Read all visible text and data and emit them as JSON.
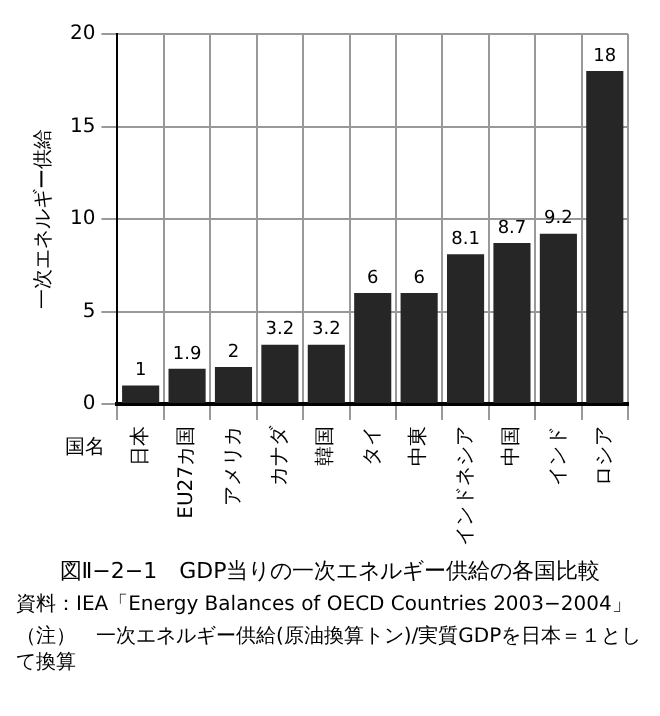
{
  "chart_data": {
    "type": "bar",
    "title": "図Ⅱ−2−1　GDP当りの一次エネルギー供給の各国比較",
    "xlabel": "国名",
    "ylabel": "一次エネルギー供給",
    "categories": [
      "日本",
      "EU27カ国",
      "アメリカ",
      "カナダ",
      "韓国",
      "タイ",
      "中東",
      "インドネシア",
      "中国",
      "インド",
      "ロシア"
    ],
    "values": [
      1,
      1.9,
      2,
      3.2,
      3.2,
      6,
      6,
      8.1,
      8.7,
      9.2,
      18
    ],
    "color": "#262626",
    "ylim": [
      0,
      20
    ],
    "yticks": [
      0,
      5,
      10,
      15,
      20
    ],
    "grid": true,
    "legend": false,
    "data_labels": true,
    "annotations": [
      "資料：IEA「Energy Balances of OECD Countries 2003−2004」",
      "（注）　一次エネルギー供給(原油換算トン)/実質GDPを日本＝１として換算"
    ]
  }
}
